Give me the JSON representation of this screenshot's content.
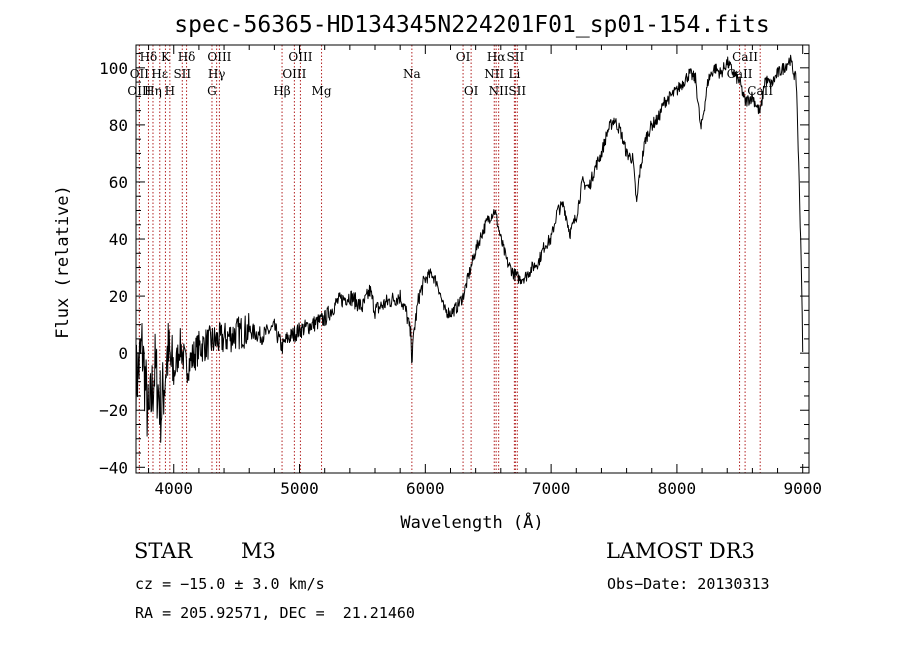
{
  "chart_data": {
    "type": "line",
    "title": "spec-56365-HD134345N224201F01_sp01-154.fits",
    "xlabel": "Wavelength (Å)",
    "ylabel": "Flux (relative)",
    "xlim": [
      3700,
      9050
    ],
    "ylim": [
      -42,
      108
    ],
    "xticks": [
      4000,
      5000,
      6000,
      7000,
      8000,
      9000
    ],
    "yticks": [
      -40,
      -20,
      0,
      20,
      40,
      60,
      80,
      100
    ],
    "grid": false,
    "series": [
      {
        "name": "flux",
        "x": [
          3700,
          3750,
          3800,
          3850,
          3900,
          3950,
          4000,
          4050,
          4100,
          4200,
          4300,
          4400,
          4500,
          4600,
          4700,
          4800,
          4860,
          4900,
          5000,
          5100,
          5200,
          5300,
          5400,
          5500,
          5560,
          5600,
          5700,
          5800,
          5850,
          5890,
          5893,
          5910,
          5950,
          6000,
          6050,
          6100,
          6150,
          6200,
          6250,
          6300,
          6350,
          6400,
          6450,
          6500,
          6550,
          6563,
          6600,
          6650,
          6700,
          6750,
          6800,
          6850,
          6900,
          6950,
          7000,
          7050,
          7100,
          7150,
          7200,
          7250,
          7300,
          7350,
          7400,
          7450,
          7500,
          7550,
          7600,
          7650,
          7680,
          7700,
          7750,
          7800,
          7850,
          7900,
          7950,
          8000,
          8050,
          8100,
          8150,
          8190,
          8250,
          8300,
          8350,
          8400,
          8450,
          8500,
          8542,
          8600,
          8662,
          8700,
          8750,
          8800,
          8850,
          8900,
          8950,
          8990,
          9000
        ],
        "y": [
          -10,
          2,
          -25,
          -5,
          -20,
          0,
          -8,
          3,
          -5,
          2,
          4,
          5,
          7,
          8,
          6,
          9,
          2,
          5,
          8,
          10,
          12,
          18,
          20,
          16,
          22,
          15,
          18,
          20,
          14,
          5,
          -4,
          8,
          20,
          26,
          28,
          24,
          15,
          14,
          16,
          20,
          28,
          36,
          42,
          47,
          50,
          48,
          40,
          32,
          28,
          26,
          27,
          30,
          32,
          38,
          40,
          50,
          52,
          42,
          48,
          60,
          58,
          65,
          70,
          78,
          82,
          78,
          70,
          68,
          52,
          62,
          75,
          80,
          82,
          88,
          90,
          92,
          95,
          98,
          96,
          78,
          96,
          100,
          98,
          102,
          98,
          95,
          88,
          90,
          84,
          96,
          94,
          98,
          100,
          103,
          95,
          30,
          0
        ]
      }
    ],
    "lines": [
      {
        "label": "Hδ",
        "x": 3799,
        "row": 1
      },
      {
        "label": "OII",
        "x": 3727,
        "row": 2
      },
      {
        "label": "OIII",
        "x": 3727,
        "row": 3
      },
      {
        "label": "K",
        "x": 3934,
        "row": 1
      },
      {
        "label": "Hε",
        "x": 3889,
        "row": 2
      },
      {
        "label": "Hη",
        "x": 3835,
        "row": 3
      },
      {
        "label": "H",
        "x": 3969,
        "row": 3
      },
      {
        "label": "Hδ",
        "x": 4102,
        "row": 1
      },
      {
        "label": "SII",
        "x": 4068,
        "row": 2
      },
      {
        "label": "OIII",
        "x": 4363,
        "row": 1
      },
      {
        "label": "Hγ",
        "x": 4341,
        "row": 2
      },
      {
        "label": "G",
        "x": 4304,
        "row": 3
      },
      {
        "label": "OIII",
        "x": 5007,
        "row": 1
      },
      {
        "label": "OIII",
        "x": 4959,
        "row": 2
      },
      {
        "label": "Hβ",
        "x": 4861,
        "row": 3
      },
      {
        "label": "Mg",
        "x": 5175,
        "row": 3
      },
      {
        "label": "Na",
        "x": 5893,
        "row": 2
      },
      {
        "label": "OI",
        "x": 6300,
        "row": 1
      },
      {
        "label": "OI",
        "x": 6364,
        "row": 3
      },
      {
        "label": "Hα",
        "x": 6563,
        "row": 1
      },
      {
        "label": "SII",
        "x": 6716,
        "row": 1
      },
      {
        "label": "NII",
        "x": 6548,
        "row": 2
      },
      {
        "label": "Li",
        "x": 6708,
        "row": 2
      },
      {
        "label": "NII",
        "x": 6583,
        "row": 3
      },
      {
        "label": "SII",
        "x": 6731,
        "row": 3
      },
      {
        "label": "CaII",
        "x": 8542,
        "row": 1
      },
      {
        "label": "CaII",
        "x": 8498,
        "row": 2
      },
      {
        "label": "CaII",
        "x": 8662,
        "row": 3
      }
    ],
    "line_color": "#b22222"
  },
  "info": {
    "class_label": "STAR",
    "subclass": "M3",
    "survey": "LAMOST DR3",
    "redshift": "cz = −15.0 ± 3.0 km/s",
    "obs_date": "Obs−Date: 20130313",
    "coords": "RA = 205.92571, DEC =  21.21460"
  }
}
